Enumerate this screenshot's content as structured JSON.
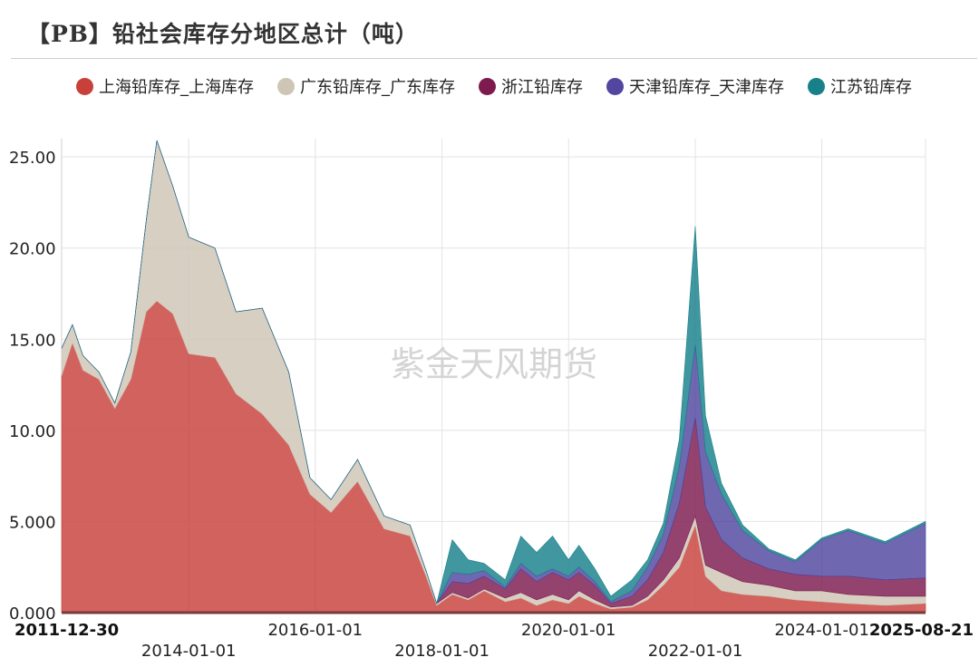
{
  "title": "【PB】铅社会库存分地区总计（吨）",
  "watermark": "紫金天风期货",
  "chart_data": {
    "type": "area",
    "stacked": true,
    "ylim": [
      0,
      26
    ],
    "y_ticks": [
      "0.000",
      "5.000",
      "10.00",
      "15.00",
      "20.00",
      "25.00"
    ],
    "x_ticks": [
      "2011-12-30",
      "2014-01-01",
      "2016-01-01",
      "2018-01-01",
      "2020-01-01",
      "2022-01-01",
      "2024-01-01",
      "2025-08-21"
    ],
    "x_ticks_bold": [
      "2011-12-30",
      "2025-08-21"
    ],
    "grid": true,
    "legend_position": "top",
    "series": [
      {
        "name": "上海铅库存_上海库存",
        "color": "#c8403a",
        "points": [
          [
            "2011-12-30",
            13.0
          ],
          [
            "2012-03-01",
            14.8
          ],
          [
            "2012-05-01",
            13.3
          ],
          [
            "2012-08-01",
            12.8
          ],
          [
            "2012-11-01",
            11.2
          ],
          [
            "2013-02-01",
            12.8
          ],
          [
            "2013-05-01",
            16.5
          ],
          [
            "2013-07-01",
            17.1
          ],
          [
            "2013-10-01",
            16.4
          ],
          [
            "2014-01-01",
            14.2
          ],
          [
            "2014-06-01",
            14.0
          ],
          [
            "2014-10-01",
            12.0
          ],
          [
            "2015-03-01",
            10.9
          ],
          [
            "2015-08-01",
            9.2
          ],
          [
            "2015-12-01",
            6.5
          ],
          [
            "2016-04-01",
            5.5
          ],
          [
            "2016-09-01",
            7.2
          ],
          [
            "2017-02-01",
            4.6
          ],
          [
            "2017-07-01",
            4.2
          ],
          [
            "2017-10-01",
            2.0
          ],
          [
            "2017-12-01",
            0.4
          ],
          [
            "2018-03-01",
            1.0
          ],
          [
            "2018-06-01",
            0.7
          ],
          [
            "2018-09-01",
            1.2
          ],
          [
            "2019-01-01",
            0.6
          ],
          [
            "2019-04-01",
            0.8
          ],
          [
            "2019-07-01",
            0.4
          ],
          [
            "2019-10-01",
            0.7
          ],
          [
            "2020-01-01",
            0.5
          ],
          [
            "2020-03-01",
            0.9
          ],
          [
            "2020-06-01",
            0.5
          ],
          [
            "2020-09-01",
            0.2
          ],
          [
            "2021-01-01",
            0.3
          ],
          [
            "2021-04-01",
            0.7
          ],
          [
            "2021-07-01",
            1.5
          ],
          [
            "2021-10-01",
            2.5
          ],
          [
            "2022-01-01",
            4.8
          ],
          [
            "2022-03-01",
            2.0
          ],
          [
            "2022-06-01",
            1.2
          ],
          [
            "2022-10-01",
            1.0
          ],
          [
            "2023-03-01",
            0.9
          ],
          [
            "2023-08-01",
            0.7
          ],
          [
            "2024-01-01",
            0.6
          ],
          [
            "2024-06-01",
            0.5
          ],
          [
            "2025-01-01",
            0.4
          ],
          [
            "2025-08-21",
            0.5
          ]
        ]
      },
      {
        "name": "广东铅库存_广东库存",
        "color": "#cfc5b6",
        "points": [
          [
            "2011-12-30",
            1.5
          ],
          [
            "2012-03-01",
            1.0
          ],
          [
            "2012-05-01",
            0.8
          ],
          [
            "2012-08-01",
            0.4
          ],
          [
            "2012-11-01",
            0.3
          ],
          [
            "2013-02-01",
            1.5
          ],
          [
            "2013-05-01",
            5.0
          ],
          [
            "2013-07-01",
            8.8
          ],
          [
            "2013-10-01",
            7.0
          ],
          [
            "2014-01-01",
            6.4
          ],
          [
            "2014-06-01",
            6.0
          ],
          [
            "2014-10-01",
            4.5
          ],
          [
            "2015-03-01",
            5.8
          ],
          [
            "2015-08-01",
            4.0
          ],
          [
            "2015-12-01",
            0.9
          ],
          [
            "2016-04-01",
            0.7
          ],
          [
            "2016-09-01",
            1.2
          ],
          [
            "2017-02-01",
            0.7
          ],
          [
            "2017-07-01",
            0.6
          ],
          [
            "2017-10-01",
            0.3
          ],
          [
            "2017-12-01",
            0.1
          ],
          [
            "2018-03-01",
            0.1
          ],
          [
            "2018-06-01",
            0.1
          ],
          [
            "2018-09-01",
            0.1
          ],
          [
            "2019-01-01",
            0.2
          ],
          [
            "2019-04-01",
            0.3
          ],
          [
            "2019-07-01",
            0.3
          ],
          [
            "2019-10-01",
            0.3
          ],
          [
            "2020-01-01",
            0.2
          ],
          [
            "2020-03-01",
            0.3
          ],
          [
            "2020-06-01",
            0.2
          ],
          [
            "2020-09-01",
            0.1
          ],
          [
            "2021-01-01",
            0.1
          ],
          [
            "2021-04-01",
            0.2
          ],
          [
            "2021-07-01",
            0.3
          ],
          [
            "2021-10-01",
            0.5
          ],
          [
            "2022-01-01",
            0.5
          ],
          [
            "2022-03-01",
            0.6
          ],
          [
            "2022-06-01",
            1.0
          ],
          [
            "2022-10-01",
            0.7
          ],
          [
            "2023-03-01",
            0.6
          ],
          [
            "2023-08-01",
            0.5
          ],
          [
            "2024-01-01",
            0.6
          ],
          [
            "2024-06-01",
            0.5
          ],
          [
            "2025-01-01",
            0.5
          ],
          [
            "2025-08-21",
            0.4
          ]
        ]
      },
      {
        "name": "浙江铅库存",
        "color": "#7d1a4e",
        "points": [
          [
            "2011-12-30",
            0.0
          ],
          [
            "2012-03-01",
            0.0
          ],
          [
            "2012-05-01",
            0.0
          ],
          [
            "2012-08-01",
            0.0
          ],
          [
            "2012-11-01",
            0.0
          ],
          [
            "2013-02-01",
            0.0
          ],
          [
            "2013-05-01",
            0.0
          ],
          [
            "2013-07-01",
            0.0
          ],
          [
            "2013-10-01",
            0.0
          ],
          [
            "2014-01-01",
            0.0
          ],
          [
            "2014-06-01",
            0.0
          ],
          [
            "2014-10-01",
            0.0
          ],
          [
            "2015-03-01",
            0.0
          ],
          [
            "2015-08-01",
            0.0
          ],
          [
            "2015-12-01",
            0.0
          ],
          [
            "2016-04-01",
            0.0
          ],
          [
            "2016-09-01",
            0.0
          ],
          [
            "2017-02-01",
            0.0
          ],
          [
            "2017-07-01",
            0.0
          ],
          [
            "2017-10-01",
            0.0
          ],
          [
            "2017-12-01",
            0.0
          ],
          [
            "2018-03-01",
            0.6
          ],
          [
            "2018-06-01",
            0.8
          ],
          [
            "2018-09-01",
            0.7
          ],
          [
            "2019-01-01",
            0.5
          ],
          [
            "2019-04-01",
            1.3
          ],
          [
            "2019-07-01",
            1.0
          ],
          [
            "2019-10-01",
            1.2
          ],
          [
            "2020-01-01",
            1.1
          ],
          [
            "2020-03-01",
            1.0
          ],
          [
            "2020-06-01",
            0.8
          ],
          [
            "2020-09-01",
            0.2
          ],
          [
            "2021-01-01",
            0.5
          ],
          [
            "2021-04-01",
            0.9
          ],
          [
            "2021-07-01",
            1.5
          ],
          [
            "2021-10-01",
            3.0
          ],
          [
            "2022-01-01",
            5.4
          ],
          [
            "2022-03-01",
            3.2
          ],
          [
            "2022-06-01",
            1.8
          ],
          [
            "2022-10-01",
            1.3
          ],
          [
            "2023-03-01",
            0.9
          ],
          [
            "2023-08-01",
            0.9
          ],
          [
            "2024-01-01",
            0.8
          ],
          [
            "2024-06-01",
            1.0
          ],
          [
            "2025-01-01",
            0.9
          ],
          [
            "2025-08-21",
            1.0
          ]
        ]
      },
      {
        "name": "天津铅库存_天津库存",
        "color": "#5146a0",
        "points": [
          [
            "2011-12-30",
            0.0
          ],
          [
            "2012-03-01",
            0.0
          ],
          [
            "2012-05-01",
            0.0
          ],
          [
            "2012-08-01",
            0.0
          ],
          [
            "2012-11-01",
            0.0
          ],
          [
            "2013-02-01",
            0.0
          ],
          [
            "2013-05-01",
            0.0
          ],
          [
            "2013-07-01",
            0.0
          ],
          [
            "2013-10-01",
            0.0
          ],
          [
            "2014-01-01",
            0.0
          ],
          [
            "2014-06-01",
            0.0
          ],
          [
            "2014-10-01",
            0.0
          ],
          [
            "2015-03-01",
            0.0
          ],
          [
            "2015-08-01",
            0.0
          ],
          [
            "2015-12-01",
            0.0
          ],
          [
            "2016-04-01",
            0.0
          ],
          [
            "2016-09-01",
            0.0
          ],
          [
            "2017-02-01",
            0.0
          ],
          [
            "2017-07-01",
            0.0
          ],
          [
            "2017-10-01",
            0.0
          ],
          [
            "2017-12-01",
            0.0
          ],
          [
            "2018-03-01",
            0.5
          ],
          [
            "2018-06-01",
            0.5
          ],
          [
            "2018-09-01",
            0.3
          ],
          [
            "2019-01-01",
            0.1
          ],
          [
            "2019-04-01",
            0.3
          ],
          [
            "2019-07-01",
            0.3
          ],
          [
            "2019-10-01",
            0.2
          ],
          [
            "2020-01-01",
            0.2
          ],
          [
            "2020-03-01",
            0.3
          ],
          [
            "2020-06-01",
            0.2
          ],
          [
            "2020-09-01",
            0.1
          ],
          [
            "2021-01-01",
            0.3
          ],
          [
            "2021-04-01",
            0.7
          ],
          [
            "2021-07-01",
            1.0
          ],
          [
            "2021-10-01",
            2.0
          ],
          [
            "2022-01-01",
            4.0
          ],
          [
            "2022-03-01",
            3.0
          ],
          [
            "2022-06-01",
            2.5
          ],
          [
            "2022-10-01",
            1.5
          ],
          [
            "2023-03-01",
            1.0
          ],
          [
            "2023-08-01",
            0.7
          ],
          [
            "2024-01-01",
            2.0
          ],
          [
            "2024-06-01",
            2.5
          ],
          [
            "2025-01-01",
            2.0
          ],
          [
            "2025-08-21",
            3.0
          ]
        ]
      },
      {
        "name": "江苏铅库存",
        "color": "#17808a",
        "points": [
          [
            "2011-12-30",
            0.0
          ],
          [
            "2012-03-01",
            0.0
          ],
          [
            "2012-05-01",
            0.0
          ],
          [
            "2012-08-01",
            0.0
          ],
          [
            "2012-11-01",
            0.0
          ],
          [
            "2013-02-01",
            0.0
          ],
          [
            "2013-05-01",
            0.0
          ],
          [
            "2013-07-01",
            0.0
          ],
          [
            "2013-10-01",
            0.0
          ],
          [
            "2014-01-01",
            0.0
          ],
          [
            "2014-06-01",
            0.0
          ],
          [
            "2014-10-01",
            0.0
          ],
          [
            "2015-03-01",
            0.0
          ],
          [
            "2015-08-01",
            0.0
          ],
          [
            "2015-12-01",
            0.0
          ],
          [
            "2016-04-01",
            0.0
          ],
          [
            "2016-09-01",
            0.0
          ],
          [
            "2017-02-01",
            0.0
          ],
          [
            "2017-07-01",
            0.0
          ],
          [
            "2017-10-01",
            0.0
          ],
          [
            "2017-12-01",
            0.0
          ],
          [
            "2018-03-01",
            1.8
          ],
          [
            "2018-06-01",
            0.8
          ],
          [
            "2018-09-01",
            0.4
          ],
          [
            "2019-01-01",
            0.4
          ],
          [
            "2019-04-01",
            1.5
          ],
          [
            "2019-07-01",
            1.3
          ],
          [
            "2019-10-01",
            1.8
          ],
          [
            "2020-01-01",
            0.9
          ],
          [
            "2020-03-01",
            1.2
          ],
          [
            "2020-06-01",
            0.7
          ],
          [
            "2020-09-01",
            0.3
          ],
          [
            "2021-01-01",
            0.6
          ],
          [
            "2021-04-01",
            0.4
          ],
          [
            "2021-07-01",
            0.6
          ],
          [
            "2021-10-01",
            1.5
          ],
          [
            "2022-01-01",
            6.5
          ],
          [
            "2022-03-01",
            2.0
          ],
          [
            "2022-06-01",
            0.6
          ],
          [
            "2022-10-01",
            0.3
          ],
          [
            "2023-03-01",
            0.1
          ],
          [
            "2023-08-01",
            0.1
          ],
          [
            "2024-01-01",
            0.1
          ],
          [
            "2024-06-01",
            0.1
          ],
          [
            "2025-01-01",
            0.1
          ],
          [
            "2025-08-21",
            0.1
          ]
        ]
      }
    ]
  }
}
